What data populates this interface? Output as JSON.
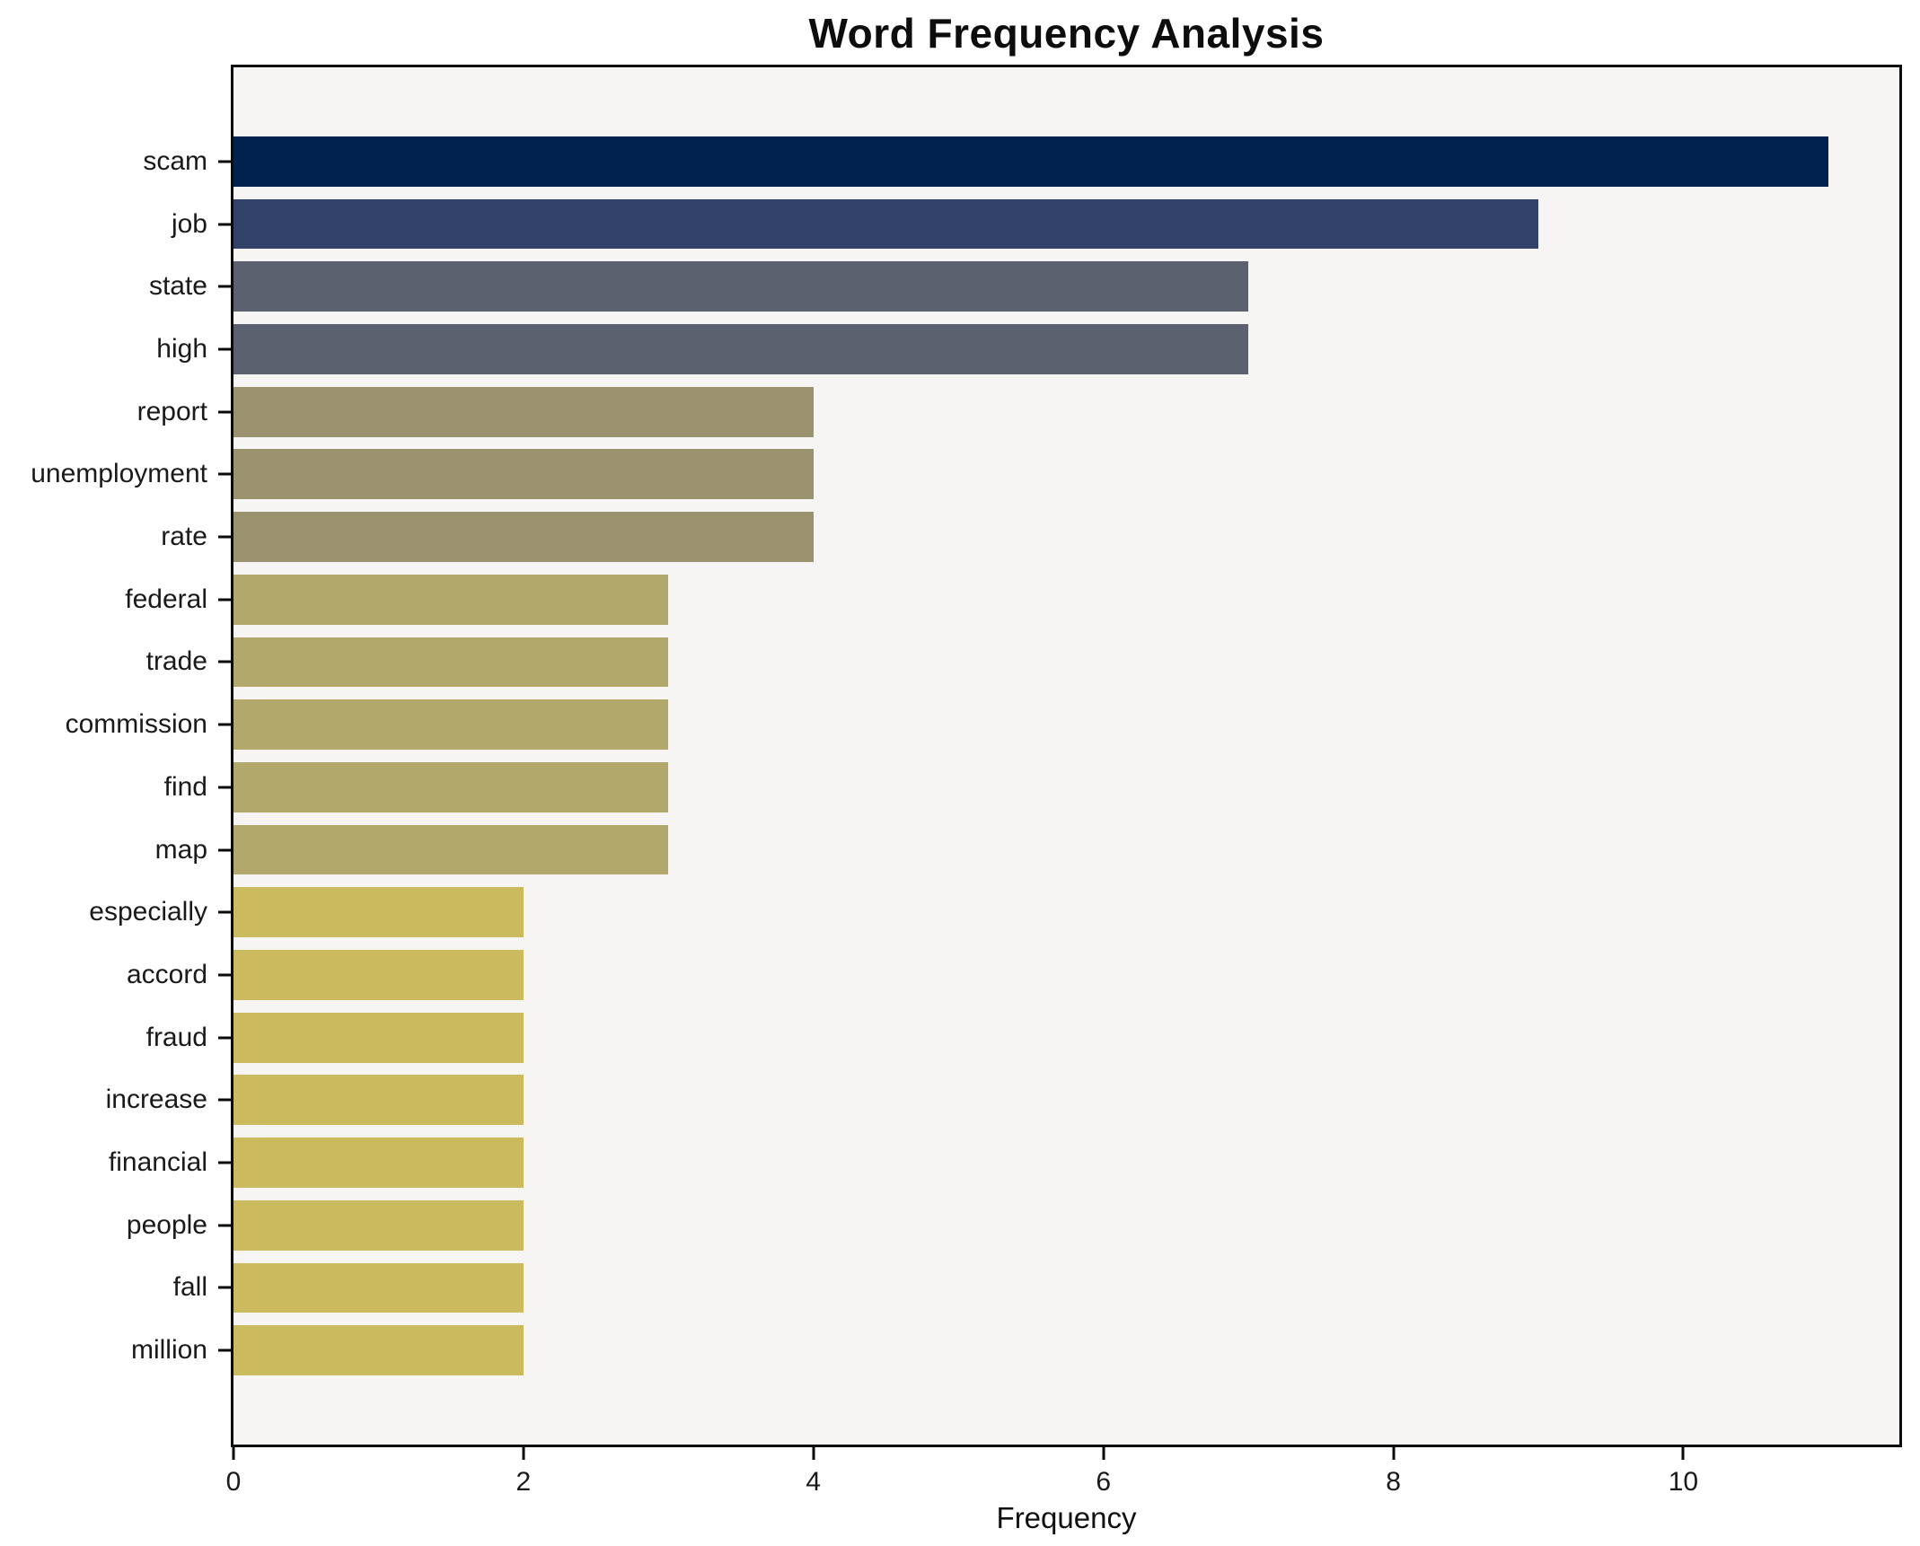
{
  "chart_data": {
    "type": "bar",
    "orientation": "horizontal",
    "title": "Word Frequency Analysis",
    "xlabel": "Frequency",
    "ylabel": "",
    "categories": [
      "scam",
      "job",
      "state",
      "high",
      "report",
      "unemployment",
      "rate",
      "federal",
      "trade",
      "commission",
      "find",
      "map",
      "especially",
      "accord",
      "fraud",
      "increase",
      "financial",
      "people",
      "fall",
      "million"
    ],
    "values": [
      11,
      9,
      7,
      7,
      4,
      4,
      4,
      3,
      3,
      3,
      3,
      3,
      2,
      2,
      2,
      2,
      2,
      2,
      2,
      2
    ],
    "bar_colors": [
      "#02224e",
      "#334269",
      "#5c6170",
      "#5c6170",
      "#9b9270",
      "#9b9270",
      "#9b9270",
      "#b2a86b",
      "#b2a86b",
      "#b2a86b",
      "#b2a86b",
      "#b2a86b",
      "#ccba5e",
      "#ccba5e",
      "#ccba5e",
      "#ccba5e",
      "#ccba5e",
      "#ccba5e",
      "#ccba5e",
      "#ccba5e"
    ],
    "xlim": [
      0,
      11.49
    ],
    "xticks": [
      0,
      2,
      4,
      6,
      8,
      10
    ],
    "grid": false,
    "legend": null,
    "bar_height_fraction": 0.8
  },
  "colors": {
    "figure_bg": "#ffffff",
    "plot_bg": "#f6f5f3",
    "axis": "#0a0a0a",
    "text": "#1a1a1a"
  }
}
